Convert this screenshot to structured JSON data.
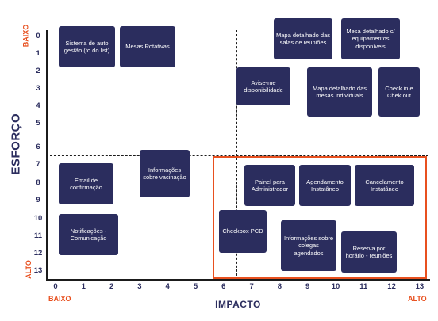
{
  "y_axis": {
    "title": "ESFORÇO",
    "low_label": "BAIXO",
    "high_label": "ALTO",
    "ticks": [
      "0",
      "1",
      "2",
      "3",
      "4",
      "5",
      "6",
      "7",
      "8",
      "9",
      "10",
      "11",
      "12",
      "13"
    ]
  },
  "x_axis": {
    "title": "IMPACTO",
    "low_label": "BAIXO",
    "high_label": "ALTO",
    "ticks": [
      "0",
      "1",
      "2",
      "3",
      "4",
      "5",
      "6",
      "7",
      "8",
      "9",
      "10",
      "11",
      "12",
      "13"
    ]
  },
  "cards": [
    {
      "label": "Sistema de auto gestão (to do list)"
    },
    {
      "label": "Mesas Rotativas"
    },
    {
      "label": "Mapa detalhado das salas de reuniões"
    },
    {
      "label": "Mesa detalhado c/ equipamentos disponíveis"
    },
    {
      "label": "Avise-me disponibilidade"
    },
    {
      "label": "Mapa detalhado das mesas individuais"
    },
    {
      "label": "Check in e Chek out"
    },
    {
      "label": "Email de confirmação"
    },
    {
      "label": "Informações sobre vacinação"
    },
    {
      "label": "Painel para Administrador"
    },
    {
      "label": "Agendamento Instatâneo"
    },
    {
      "label": "Cancelamento Instatâneo"
    },
    {
      "label": "Notificações - Comunicação"
    },
    {
      "label": "Checkbox PCD"
    },
    {
      "label": "Informações sobre colegas agendados"
    },
    {
      "label": "Reserva por horário - reuniões"
    }
  ]
}
